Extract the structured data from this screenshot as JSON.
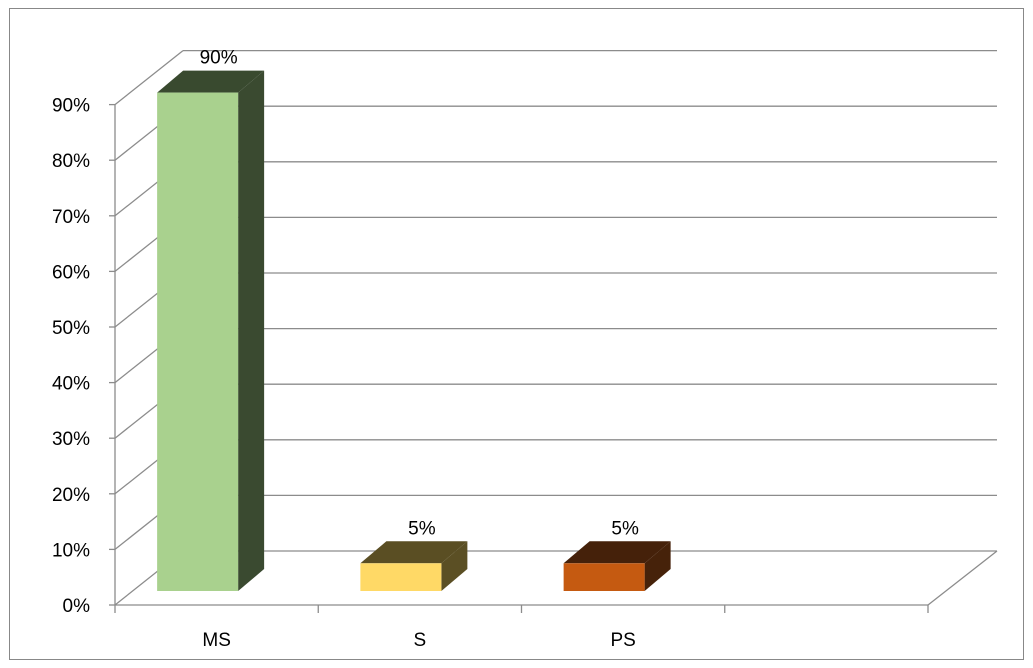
{
  "chart_data": {
    "type": "bar",
    "style": "3d-column",
    "categories": [
      "MS",
      "S",
      "PS",
      ""
    ],
    "values": [
      90,
      5,
      5,
      null
    ],
    "data_labels": [
      "90%",
      "5%",
      "5%",
      ""
    ],
    "ylim": [
      0,
      90
    ],
    "yticks": [
      "0%",
      "10%",
      "20%",
      "30%",
      "40%",
      "50%",
      "60%",
      "70%",
      "80%",
      "90%"
    ],
    "title": "",
    "xlabel": "",
    "ylabel": "",
    "grid": true,
    "legend": "none",
    "colors": {
      "front": [
        "#a9d18e",
        "#ffd966",
        "#c55a11"
      ],
      "side": [
        "#3a4a30",
        "#5b4f24",
        "#46220a"
      ],
      "top": [
        "#394a2f",
        "#5a4e23",
        "#45210a"
      ],
      "grid": "#8c8c8c"
    }
  }
}
